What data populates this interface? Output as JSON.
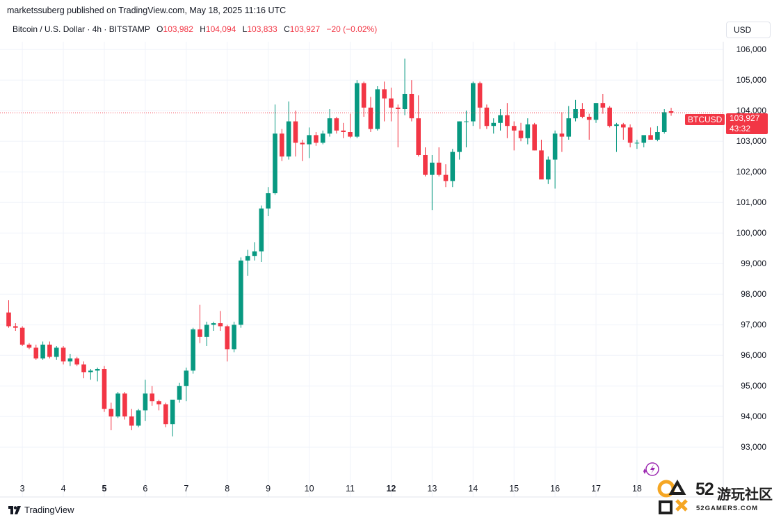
{
  "header": {
    "publisher": "marketssuberg published on TradingView.com, May 18, 2025 11:16 UTC"
  },
  "legend": {
    "symbol": "Bitcoin / U.S. Dollar · 4h · BITSTAMP",
    "o_label": "O",
    "o_value": "103,982",
    "h_label": "H",
    "h_value": "104,094",
    "l_label": "L",
    "l_value": "103,833",
    "c_label": "C",
    "c_value": "103,927",
    "change": "−20 (−0.02%)"
  },
  "currency": "USD",
  "price_tag": {
    "ticker": "BTCUSD",
    "price": "103,927",
    "countdown": "43:32"
  },
  "brand": {
    "footer": "TradingView",
    "watermark_num": "52",
    "watermark_cn": "游玩社区",
    "watermark_url": "52GAMERS.COM"
  },
  "colors": {
    "up": "#089981",
    "down": "#f23645",
    "grid": "#f0f3fa",
    "axis_text": "#131722"
  },
  "chart_data": {
    "type": "candlestick",
    "ylim": [
      92300,
      106300
    ],
    "yticks": [
      93000,
      94000,
      95000,
      96000,
      97000,
      98000,
      99000,
      100000,
      101000,
      102000,
      103000,
      104000,
      105000,
      106000
    ],
    "ytick_labels": [
      "93,000",
      "94,000",
      "95,000",
      "96,000",
      "97,000",
      "98,000",
      "99,000",
      "100,000",
      "101,000",
      "102,000",
      "103,000",
      "104,000",
      "105,000",
      "106,000"
    ],
    "xticks": [
      {
        "label": "3",
        "index": 2,
        "bold": false
      },
      {
        "label": "4",
        "index": 8,
        "bold": false
      },
      {
        "label": "5",
        "index": 14,
        "bold": true
      },
      {
        "label": "6",
        "index": 20,
        "bold": false
      },
      {
        "label": "7",
        "index": 26,
        "bold": false
      },
      {
        "label": "8",
        "index": 32,
        "bold": false
      },
      {
        "label": "9",
        "index": 38,
        "bold": false
      },
      {
        "label": "10",
        "index": 44,
        "bold": false
      },
      {
        "label": "11",
        "index": 50,
        "bold": false
      },
      {
        "label": "12",
        "index": 56,
        "bold": true
      },
      {
        "label": "13",
        "index": 62,
        "bold": false
      },
      {
        "label": "14",
        "index": 68,
        "bold": false
      },
      {
        "label": "15",
        "index": 74,
        "bold": false
      },
      {
        "label": "16",
        "index": 80,
        "bold": false
      },
      {
        "label": "17",
        "index": 86,
        "bold": false
      },
      {
        "label": "18",
        "index": 92,
        "bold": false
      }
    ],
    "last_price": 103927,
    "candles": [
      [
        97400,
        97800,
        96900,
        96950
      ],
      [
        96950,
        97050,
        96800,
        96900
      ],
      [
        96900,
        96950,
        96300,
        96350
      ],
      [
        96350,
        96400,
        96200,
        96250
      ],
      [
        96250,
        96350,
        95850,
        95900
      ],
      [
        95900,
        96450,
        95850,
        96350
      ],
      [
        96350,
        96450,
        95900,
        95950
      ],
      [
        95950,
        96300,
        95850,
        96250
      ],
      [
        96250,
        96300,
        95700,
        95800
      ],
      [
        95800,
        96050,
        95650,
        95900
      ],
      [
        95900,
        95950,
        95650,
        95700
      ],
      [
        95700,
        95800,
        95250,
        95450
      ],
      [
        95450,
        95550,
        95200,
        95500
      ],
      [
        95500,
        95600,
        95150,
        95550
      ],
      [
        95550,
        95650,
        94150,
        94250
      ],
      [
        94250,
        94450,
        93550,
        94000
      ],
      [
        94000,
        94800,
        93950,
        94750
      ],
      [
        94750,
        94800,
        93900,
        94000
      ],
      [
        94000,
        94250,
        93550,
        93700
      ],
      [
        93700,
        94250,
        93650,
        94200
      ],
      [
        94200,
        95200,
        93850,
        94750
      ],
      [
        94750,
        95000,
        94350,
        94500
      ],
      [
        94500,
        94550,
        94200,
        94400
      ],
      [
        94400,
        94450,
        93650,
        93750
      ],
      [
        93750,
        94550,
        93350,
        94550
      ],
      [
        94550,
        95100,
        94450,
        95000
      ],
      [
        95000,
        95600,
        94500,
        95500
      ],
      [
        95500,
        96900,
        95400,
        96850
      ],
      [
        96850,
        97650,
        96400,
        96600
      ],
      [
        96600,
        97100,
        96300,
        97000
      ],
      [
        97000,
        97100,
        96800,
        97050
      ],
      [
        97050,
        97450,
        96800,
        96950
      ],
      [
        96950,
        97000,
        95800,
        96200
      ],
      [
        96200,
        97100,
        96100,
        97000
      ],
      [
        97000,
        99200,
        96900,
        99100
      ],
      [
        99100,
        99450,
        98600,
        99250
      ],
      [
        99250,
        99700,
        99100,
        99400
      ],
      [
        99400,
        100900,
        99050,
        100800
      ],
      [
        100800,
        101500,
        100550,
        101300
      ],
      [
        101300,
        104200,
        101250,
        103250
      ],
      [
        103250,
        103400,
        102350,
        102500
      ],
      [
        102500,
        104300,
        102400,
        103650
      ],
      [
        103650,
        104000,
        102500,
        102950
      ],
      [
        102950,
        103050,
        102350,
        102900
      ],
      [
        102900,
        103450,
        102450,
        103200
      ],
      [
        103200,
        103300,
        102850,
        102950
      ],
      [
        102950,
        103350,
        102900,
        103250
      ],
      [
        103250,
        104050,
        103150,
        103750
      ],
      [
        103750,
        103800,
        103250,
        103350
      ],
      [
        103350,
        103600,
        103100,
        103300
      ],
      [
        103300,
        103900,
        103100,
        103150
      ],
      [
        103150,
        105000,
        103100,
        104900
      ],
      [
        104900,
        104950,
        103800,
        104100
      ],
      [
        104100,
        104450,
        103300,
        103400
      ],
      [
        103400,
        104800,
        103350,
        104700
      ],
      [
        104700,
        104950,
        103650,
        104400
      ],
      [
        104400,
        104750,
        103650,
        104100
      ],
      [
        104100,
        104200,
        102800,
        104050
      ],
      [
        104050,
        105700,
        103850,
        104550
      ],
      [
        104550,
        105000,
        103650,
        103750
      ],
      [
        103750,
        104500,
        102500,
        102550
      ],
      [
        102550,
        102800,
        101850,
        101900
      ],
      [
        101900,
        102550,
        100750,
        102300
      ],
      [
        102300,
        102800,
        101850,
        101900
      ],
      [
        101900,
        102250,
        101500,
        101700
      ],
      [
        101700,
        102750,
        101500,
        102650
      ],
      [
        102650,
        103650,
        102400,
        103650
      ],
      [
        103650,
        104000,
        102800,
        103650
      ],
      [
        103650,
        104950,
        103500,
        104900
      ],
      [
        104900,
        104950,
        103400,
        104100
      ],
      [
        104100,
        104200,
        103400,
        103500
      ],
      [
        103500,
        103750,
        103250,
        103600
      ],
      [
        103600,
        104050,
        103350,
        103850
      ],
      [
        103850,
        104250,
        103100,
        103500
      ],
      [
        103500,
        103650,
        102700,
        103350
      ],
      [
        103350,
        103600,
        103000,
        103100
      ],
      [
        103100,
        103750,
        102900,
        103550
      ],
      [
        103550,
        103600,
        102700,
        102700
      ],
      [
        102700,
        103050,
        101850,
        101750
      ],
      [
        101750,
        102500,
        101600,
        102400
      ],
      [
        102400,
        103350,
        101450,
        103250
      ],
      [
        103250,
        103950,
        102650,
        103150
      ],
      [
        103150,
        104150,
        103050,
        103750
      ],
      [
        103750,
        104350,
        103650,
        104050
      ],
      [
        104050,
        104250,
        103750,
        103800
      ],
      [
        103800,
        103900,
        103050,
        103700
      ],
      [
        103700,
        104250,
        103600,
        104250
      ],
      [
        104250,
        104550,
        103900,
        104100
      ],
      [
        104100,
        104150,
        103450,
        103500
      ],
      [
        103500,
        103600,
        102650,
        103550
      ],
      [
        103550,
        103600,
        103050,
        103450
      ],
      [
        103450,
        103550,
        102800,
        102950
      ],
      [
        102950,
        103050,
        102750,
        102950
      ],
      [
        102950,
        103150,
        102800,
        103200
      ],
      [
        103200,
        103450,
        103050,
        103050
      ],
      [
        103050,
        103500,
        103000,
        103300
      ],
      [
        103300,
        104050,
        103250,
        103950
      ],
      [
        103982,
        104094,
        103833,
        103927
      ]
    ]
  }
}
